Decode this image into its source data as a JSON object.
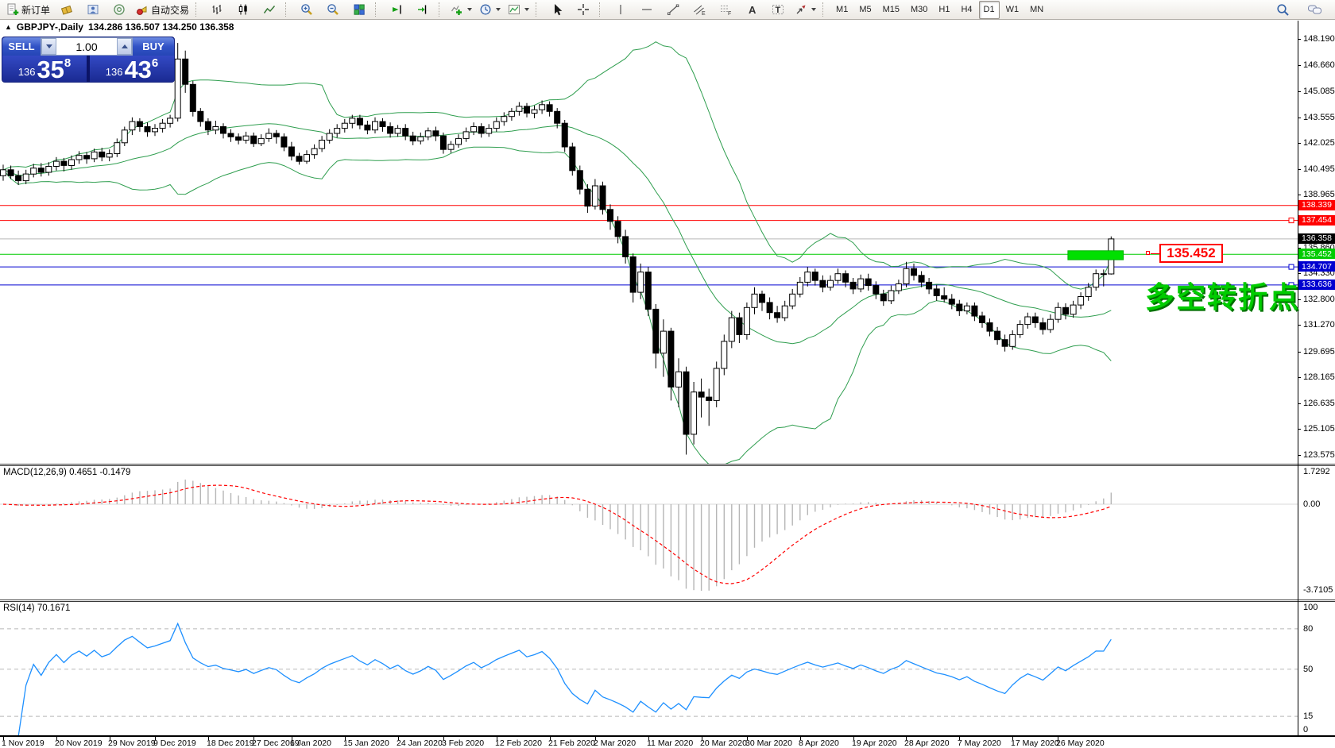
{
  "toolbar": {
    "new_order": "新订单",
    "autotrading": "自动交易",
    "timeframes": [
      "M1",
      "M5",
      "M15",
      "M30",
      "H1",
      "H4",
      "D1",
      "W1",
      "MN"
    ],
    "active_timeframe": "D1",
    "glyphs": {
      "channel": "E",
      "fibonacci": "F",
      "text_tool": "A",
      "label_tool": "T"
    }
  },
  "header": {
    "collapse_arrow": "▲",
    "title": "GBPJPY-,Daily",
    "ohlc_text": "134.286 136.507 134.250 136.358"
  },
  "trade_panel": {
    "sell_label": "SELL",
    "buy_label": "BUY",
    "volume": "1.00",
    "sell_price": {
      "prefix": "136",
      "big": "35",
      "pip": "8"
    },
    "buy_price": {
      "prefix": "136",
      "big": "43",
      "pip": "6"
    }
  },
  "indicator_labels": {
    "macd": "MACD(12,26,9) 0.4651 -0.1479",
    "rsi": "RSI(14) 70.1671"
  },
  "macd_axis": {
    "max": "1.7292",
    "zero": "0.00",
    "min": "-3.7105"
  },
  "rsi_axis": [
    "100",
    "80",
    "50",
    "15",
    "0"
  ],
  "callout": {
    "text": "135.452"
  },
  "annotation": {
    "text": "多空转折点",
    "color": "#00cc00",
    "shadow": "#007000"
  },
  "chart_data": {
    "type": "candlestick",
    "symbol": "GBPJPY-",
    "period": "Daily",
    "last_candle_ohlc": {
      "open": 134.286,
      "high": 136.507,
      "low": 134.25,
      "close": 136.358
    },
    "ylim": [
      123.575,
      148.19
    ],
    "price_ticks": [
      "148.190",
      "146.660",
      "145.085",
      "143.555",
      "142.025",
      "140.495",
      "138.965",
      "135.860",
      "134.330",
      "132.800",
      "131.270",
      "129.695",
      "128.165",
      "126.635",
      "125.105",
      "123.575"
    ],
    "price_tags": [
      {
        "text": "138.339",
        "price": 138.339,
        "bg": "#ff0000",
        "fg": "#ffffff"
      },
      {
        "text": "137.454",
        "price": 137.454,
        "bg": "#ff0000",
        "fg": "#ffffff"
      },
      {
        "text": "136.358",
        "price": 136.358,
        "bg": "#000000",
        "fg": "#ffffff"
      },
      {
        "text": "135.452",
        "price": 135.452,
        "bg": "#00cc00",
        "fg": "#ffffff"
      },
      {
        "text": "134.707",
        "price": 134.707,
        "bg": "#0000d0",
        "fg": "#ffffff"
      },
      {
        "text": "133.636",
        "price": 133.636,
        "bg": "#0000d0",
        "fg": "#ffffff"
      }
    ],
    "horizontal_lines": [
      {
        "price": 138.339,
        "color": "#ff0000",
        "handle": false
      },
      {
        "price": 137.454,
        "color": "#ff0000",
        "handle": true
      },
      {
        "price": 136.358,
        "color": "#b8b8b8",
        "handle": false
      },
      {
        "price": 135.452,
        "color": "#00cc00",
        "handle": false
      },
      {
        "price": 134.707,
        "color": "#0000d0",
        "handle": true
      },
      {
        "price": 133.636,
        "color": "#0000d0",
        "handle": true
      }
    ],
    "highlight_rect": {
      "from_idx": 140.3,
      "to_idx": 147.6,
      "price_top": 135.66,
      "price_bottom": 135.13,
      "color": "#00e000"
    },
    "indicators": {
      "bollinger": {
        "period": 20,
        "deviation": 2,
        "color": "#2f9e4f"
      },
      "macd": {
        "fast": 12,
        "slow": 26,
        "signal_period": 9,
        "main": 0.4651,
        "signal": -0.1479,
        "range": [
          -3.7105,
          1.7292
        ],
        "hist_color": "#b6b6b6",
        "signal_color": "#ff0000"
      },
      "rsi": {
        "period": 14,
        "value": 70.1671,
        "levels": [
          80,
          50,
          15
        ],
        "color": "#1e90ff"
      }
    },
    "date_labels": [
      {
        "label": "1 Nov 2019",
        "idx": 0
      },
      {
        "label": "20 Nov 2019",
        "idx": 7
      },
      {
        "label": "29 Nov 2019",
        "idx": 14
      },
      {
        "label": "9 Dec 2019",
        "idx": 20
      },
      {
        "label": "18 Dec 2019",
        "idx": 27
      },
      {
        "label": "27 Dec 2019",
        "idx": 33
      },
      {
        "label": "6 Jan 2020",
        "idx": 38
      },
      {
        "label": "15 Jan 2020",
        "idx": 45
      },
      {
        "label": "24 Jan 2020",
        "idx": 52
      },
      {
        "label": "3 Feb 2020",
        "idx": 58
      },
      {
        "label": "12 Feb 2020",
        "idx": 65
      },
      {
        "label": "21 Feb 2020",
        "idx": 72
      },
      {
        "label": "2 Mar 2020",
        "idx": 78
      },
      {
        "label": "11 Mar 2020",
        "idx": 85
      },
      {
        "label": "20 Mar 2020",
        "idx": 92
      },
      {
        "label": "30 Mar 2020",
        "idx": 98
      },
      {
        "label": "8 Apr 2020",
        "idx": 105
      },
      {
        "label": "19 Apr 2020",
        "idx": 112
      },
      {
        "label": "28 Apr 2020",
        "idx": 119
      },
      {
        "label": "7 May 2020",
        "idx": 126
      },
      {
        "label": "17 May 2020",
        "idx": 133
      },
      {
        "label": "26 May 2020",
        "idx": 139
      }
    ],
    "candles": [
      [
        140.1,
        140.75,
        139.8,
        140.45
      ],
      [
        140.45,
        140.7,
        139.9,
        140.1
      ],
      [
        140.1,
        140.4,
        139.55,
        139.8
      ],
      [
        139.8,
        140.45,
        139.6,
        140.2
      ],
      [
        140.2,
        140.8,
        140.0,
        140.55
      ],
      [
        140.55,
        140.85,
        140.05,
        140.3
      ],
      [
        140.3,
        140.9,
        140.1,
        140.65
      ],
      [
        140.65,
        141.2,
        140.4,
        140.95
      ],
      [
        140.95,
        141.15,
        140.35,
        140.7
      ],
      [
        140.7,
        141.3,
        140.45,
        141.05
      ],
      [
        141.05,
        141.55,
        140.8,
        141.3
      ],
      [
        141.3,
        141.5,
        140.8,
        141.1
      ],
      [
        141.1,
        141.7,
        140.9,
        141.5
      ],
      [
        141.5,
        141.75,
        140.95,
        141.2
      ],
      [
        141.2,
        141.65,
        140.95,
        141.4
      ],
      [
        141.4,
        142.3,
        141.2,
        142.05
      ],
      [
        142.05,
        143.0,
        141.85,
        142.8
      ],
      [
        142.8,
        143.55,
        142.5,
        143.3
      ],
      [
        143.3,
        143.5,
        142.7,
        143.0
      ],
      [
        143.0,
        143.25,
        142.4,
        142.7
      ],
      [
        142.7,
        143.15,
        142.45,
        142.9
      ],
      [
        142.9,
        143.45,
        142.65,
        143.2
      ],
      [
        143.2,
        143.7,
        142.95,
        143.5
      ],
      [
        143.5,
        147.95,
        143.3,
        147.0
      ],
      [
        147.0,
        147.5,
        145.0,
        145.5
      ],
      [
        145.5,
        145.7,
        143.6,
        143.9
      ],
      [
        143.9,
        144.1,
        143.0,
        143.3
      ],
      [
        143.3,
        143.5,
        142.5,
        142.8
      ],
      [
        142.8,
        143.35,
        142.55,
        143.0
      ],
      [
        143.0,
        143.2,
        142.3,
        142.6
      ],
      [
        142.6,
        142.85,
        142.1,
        142.4
      ],
      [
        142.4,
        142.6,
        141.95,
        142.2
      ],
      [
        142.2,
        142.7,
        142.0,
        142.45
      ],
      [
        142.45,
        142.65,
        141.8,
        142.0
      ],
      [
        142.0,
        142.55,
        141.85,
        142.3
      ],
      [
        142.3,
        142.9,
        142.1,
        142.6
      ],
      [
        142.6,
        142.8,
        142.0,
        142.4
      ],
      [
        142.4,
        142.6,
        141.55,
        141.8
      ],
      [
        141.8,
        142.1,
        141.0,
        141.25
      ],
      [
        141.25,
        141.45,
        140.75,
        140.95
      ],
      [
        140.95,
        141.6,
        140.8,
        141.35
      ],
      [
        141.35,
        141.95,
        141.1,
        141.7
      ],
      [
        141.7,
        142.45,
        141.5,
        142.2
      ],
      [
        142.2,
        142.85,
        142.0,
        142.6
      ],
      [
        142.6,
        143.15,
        142.35,
        142.9
      ],
      [
        142.9,
        143.45,
        142.65,
        143.2
      ],
      [
        143.2,
        143.7,
        142.9,
        143.5
      ],
      [
        143.5,
        143.7,
        142.85,
        143.1
      ],
      [
        143.1,
        143.35,
        142.55,
        142.8
      ],
      [
        142.8,
        143.55,
        142.6,
        143.3
      ],
      [
        143.3,
        143.5,
        142.7,
        143.0
      ],
      [
        143.0,
        143.25,
        142.35,
        142.6
      ],
      [
        142.6,
        143.1,
        142.4,
        142.9
      ],
      [
        142.9,
        143.15,
        142.2,
        142.45
      ],
      [
        142.45,
        142.7,
        141.9,
        142.15
      ],
      [
        142.15,
        142.65,
        141.95,
        142.4
      ],
      [
        142.4,
        142.95,
        142.2,
        142.75
      ],
      [
        142.75,
        143.0,
        142.15,
        142.45
      ],
      [
        142.45,
        142.65,
        141.4,
        141.65
      ],
      [
        141.65,
        142.15,
        141.45,
        141.95
      ],
      [
        141.95,
        142.55,
        141.75,
        142.3
      ],
      [
        142.3,
        142.95,
        142.1,
        142.7
      ],
      [
        142.7,
        143.25,
        142.5,
        143.0
      ],
      [
        143.0,
        143.2,
        142.35,
        142.6
      ],
      [
        142.6,
        143.15,
        142.4,
        142.9
      ],
      [
        142.9,
        143.55,
        142.7,
        143.3
      ],
      [
        143.3,
        143.85,
        143.05,
        143.6
      ],
      [
        143.6,
        144.1,
        143.35,
        143.9
      ],
      [
        143.9,
        144.45,
        143.65,
        144.2
      ],
      [
        144.2,
        144.4,
        143.55,
        143.8
      ],
      [
        143.8,
        144.25,
        143.5,
        144.0
      ],
      [
        144.0,
        144.55,
        143.75,
        144.3
      ],
      [
        144.3,
        144.5,
        143.6,
        143.9
      ],
      [
        143.9,
        144.1,
        142.9,
        143.2
      ],
      [
        143.2,
        143.4,
        141.5,
        141.8
      ],
      [
        141.8,
        142.05,
        140.1,
        140.4
      ],
      [
        140.4,
        140.7,
        139.0,
        139.3
      ],
      [
        139.3,
        139.6,
        137.9,
        138.3
      ],
      [
        138.3,
        139.9,
        138.1,
        139.5
      ],
      [
        139.5,
        139.75,
        137.8,
        138.1
      ],
      [
        138.1,
        138.4,
        136.9,
        137.4
      ],
      [
        137.4,
        137.7,
        136.1,
        136.5
      ],
      [
        136.5,
        136.9,
        134.9,
        135.3
      ],
      [
        135.3,
        135.5,
        132.6,
        133.2
      ],
      [
        133.2,
        134.9,
        132.8,
        134.4
      ],
      [
        134.4,
        134.7,
        131.8,
        132.2
      ],
      [
        132.2,
        132.5,
        128.7,
        129.6
      ],
      [
        129.6,
        131.6,
        128.2,
        130.9
      ],
      [
        130.9,
        131.1,
        126.8,
        127.6
      ],
      [
        127.6,
        129.3,
        126.4,
        128.5
      ],
      [
        128.5,
        128.8,
        123.6,
        124.8
      ],
      [
        124.8,
        127.9,
        124.2,
        127.3
      ],
      [
        127.3,
        128.1,
        125.8,
        127.0
      ],
      [
        127.0,
        127.5,
        125.3,
        126.8
      ],
      [
        126.8,
        129.1,
        126.4,
        128.7
      ],
      [
        128.7,
        130.7,
        128.3,
        130.3
      ],
      [
        130.3,
        132.1,
        129.9,
        131.7
      ],
      [
        131.7,
        132.0,
        130.2,
        130.7
      ],
      [
        130.7,
        132.6,
        130.4,
        132.3
      ],
      [
        132.3,
        133.5,
        131.9,
        133.1
      ],
      [
        133.1,
        133.3,
        132.1,
        132.6
      ],
      [
        132.6,
        132.9,
        131.6,
        132.0
      ],
      [
        132.0,
        132.4,
        131.4,
        131.7
      ],
      [
        131.7,
        132.7,
        131.5,
        132.4
      ],
      [
        132.4,
        133.4,
        132.2,
        133.1
      ],
      [
        133.1,
        134.1,
        132.9,
        133.8
      ],
      [
        133.8,
        134.7,
        133.55,
        134.4
      ],
      [
        134.4,
        134.6,
        133.6,
        133.9
      ],
      [
        133.9,
        134.2,
        133.2,
        133.5
      ],
      [
        133.5,
        134.2,
        133.3,
        133.9
      ],
      [
        133.9,
        134.6,
        133.7,
        134.3
      ],
      [
        134.3,
        134.5,
        133.5,
        133.8
      ],
      [
        133.8,
        134.05,
        133.1,
        133.4
      ],
      [
        133.4,
        134.25,
        133.2,
        134.0
      ],
      [
        134.0,
        134.3,
        133.3,
        133.6
      ],
      [
        133.6,
        133.85,
        132.8,
        133.1
      ],
      [
        133.1,
        133.35,
        132.4,
        132.7
      ],
      [
        132.7,
        133.6,
        132.5,
        133.3
      ],
      [
        133.3,
        133.95,
        133.1,
        133.7
      ],
      [
        133.7,
        135.0,
        133.5,
        134.6
      ],
      [
        134.6,
        134.9,
        133.9,
        134.2
      ],
      [
        134.2,
        134.45,
        133.5,
        133.8
      ],
      [
        133.8,
        134.05,
        133.1,
        133.4
      ],
      [
        133.4,
        133.65,
        132.7,
        133.0
      ],
      [
        133.0,
        133.5,
        132.6,
        132.8
      ],
      [
        132.8,
        133.1,
        132.2,
        132.5
      ],
      [
        132.5,
        132.75,
        131.8,
        132.1
      ],
      [
        132.1,
        132.6,
        131.9,
        132.4
      ],
      [
        132.4,
        132.6,
        131.5,
        131.8
      ],
      [
        131.8,
        132.05,
        131.1,
        131.4
      ],
      [
        131.4,
        131.65,
        130.6,
        130.9
      ],
      [
        130.9,
        131.15,
        130.1,
        130.4
      ],
      [
        130.4,
        130.7,
        129.7,
        130.0
      ],
      [
        130.0,
        130.95,
        129.8,
        130.7
      ],
      [
        130.7,
        131.55,
        130.5,
        131.3
      ],
      [
        131.3,
        132.0,
        131.05,
        131.75
      ],
      [
        131.75,
        132.0,
        131.1,
        131.4
      ],
      [
        131.4,
        131.7,
        130.7,
        131.0
      ],
      [
        131.0,
        131.9,
        130.8,
        131.6
      ],
      [
        131.6,
        132.6,
        131.4,
        132.3
      ],
      [
        132.3,
        132.55,
        131.6,
        131.9
      ],
      [
        131.9,
        132.7,
        131.7,
        132.45
      ],
      [
        132.45,
        133.2,
        132.2,
        132.95
      ],
      [
        132.95,
        133.75,
        132.7,
        133.5
      ],
      [
        133.5,
        134.55,
        133.3,
        134.3
      ],
      [
        134.3,
        134.55,
        133.55,
        134.29
      ],
      [
        134.286,
        136.507,
        134.25,
        136.358
      ]
    ]
  }
}
